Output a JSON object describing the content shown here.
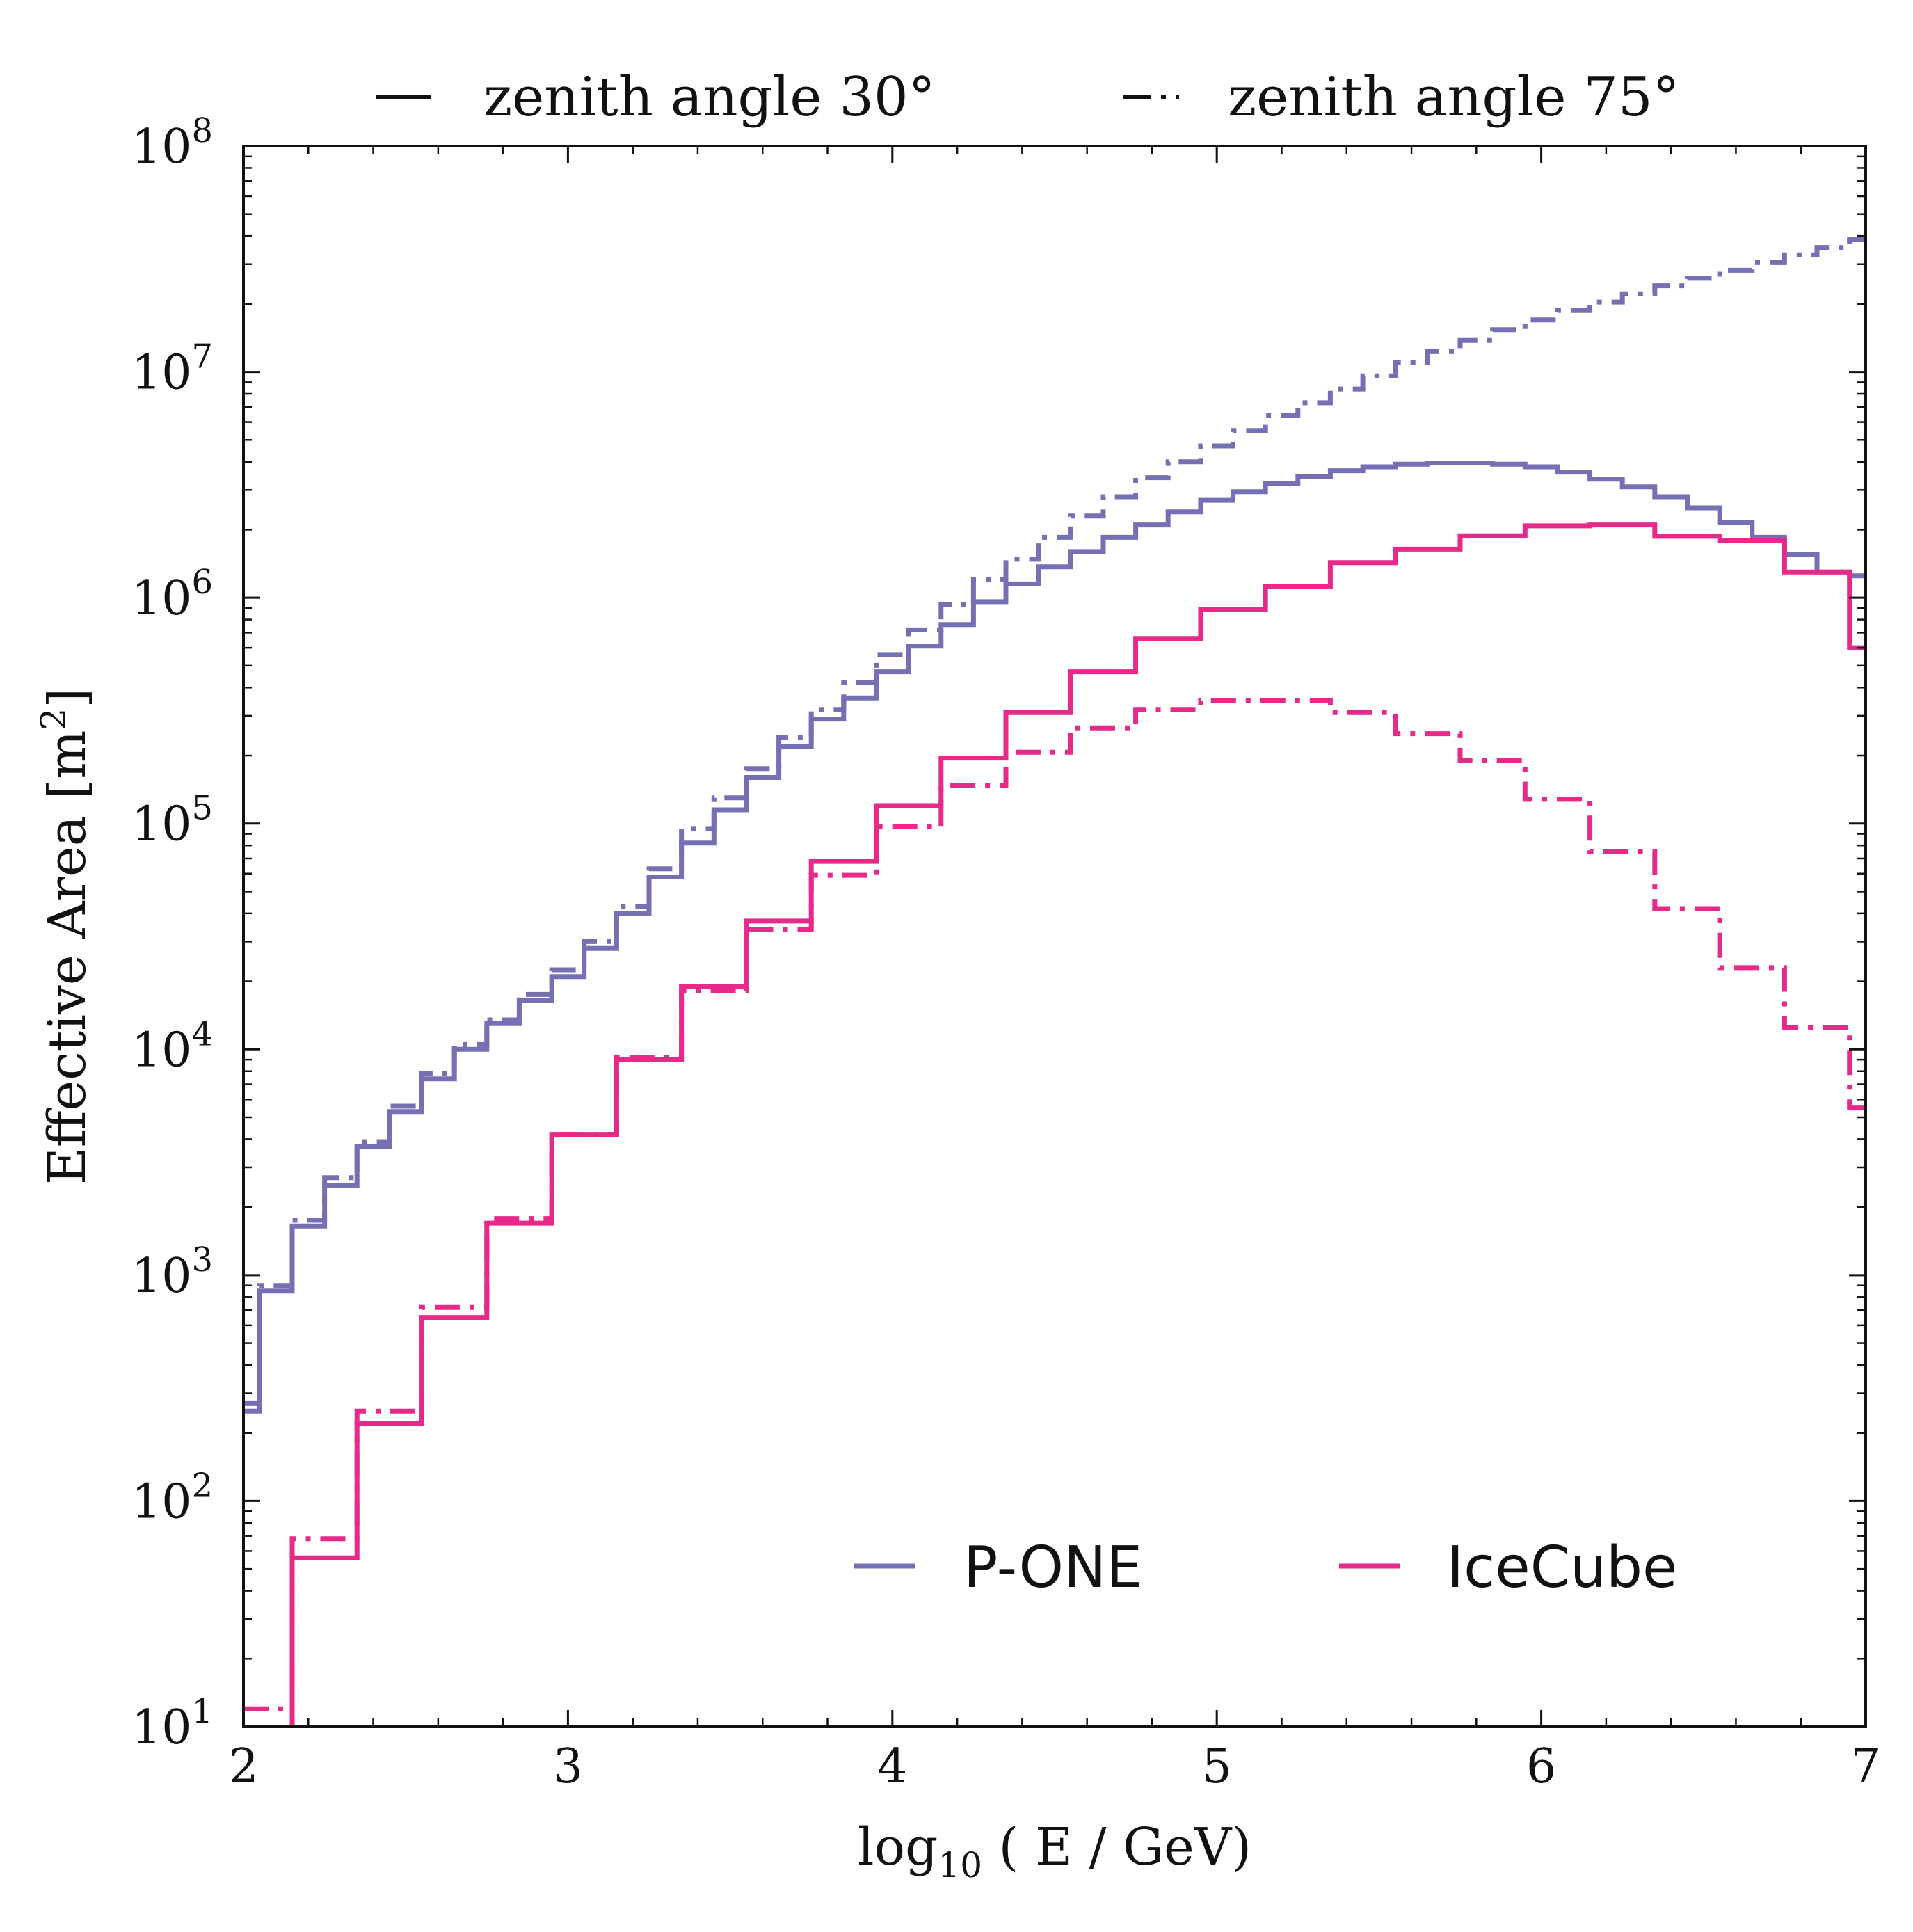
{
  "chart_data": {
    "type": "line",
    "step": true,
    "xlabel_main": "log",
    "xlabel_sub": "10",
    "xlabel_rest": " ( E / GeV)",
    "ylabel_main": "Effective Area [m",
    "ylabel_sup": "2",
    "ylabel_end": "]",
    "xlim": [
      2,
      7
    ],
    "ylim": [
      10,
      100000000
    ],
    "yscale": "log",
    "xticks": [
      2,
      3,
      4,
      5,
      6,
      7
    ],
    "xtick_labels": [
      "2",
      "3",
      "4",
      "5",
      "6",
      "7"
    ],
    "yticks": [
      10,
      100,
      1000,
      10000,
      100000,
      1000000,
      10000000,
      100000000
    ],
    "ytick_base": "10",
    "ytick_exponents": [
      "1",
      "2",
      "3",
      "4",
      "5",
      "6",
      "7",
      "8"
    ],
    "linestyle_legend": {
      "position": "top-outside",
      "entries": [
        {
          "label": "zenith angle 30°",
          "style": "solid"
        },
        {
          "label": "zenith angle 75°",
          "style": "dashdot"
        }
      ]
    },
    "series_legend": {
      "position": "lower-right",
      "entries": [
        {
          "label": "P-ONE",
          "color": "#7570b3"
        },
        {
          "label": "IceCube",
          "color": "#e7298a"
        }
      ]
    },
    "bin_edges": [
      2.0,
      2.05,
      2.15,
      2.25,
      2.35,
      2.45,
      2.55,
      2.65,
      2.75,
      2.85,
      2.95,
      3.05,
      3.15,
      3.25,
      3.35,
      3.45,
      3.55,
      3.65,
      3.75,
      3.85,
      3.95,
      4.05,
      4.15,
      4.25,
      4.35,
      4.45,
      4.55,
      4.65,
      4.75,
      4.85,
      4.95,
      5.05,
      5.15,
      5.25,
      5.35,
      5.45,
      5.55,
      5.65,
      5.75,
      5.85,
      5.95,
      6.05,
      6.15,
      6.25,
      6.35,
      6.45,
      6.55,
      6.65,
      6.75,
      6.85,
      6.95,
      7.0
    ],
    "series": [
      {
        "name": "P-ONE",
        "zenith": "30",
        "style": "solid",
        "color": "#7570b3",
        "edges": [
          2.0,
          2.05,
          2.15,
          2.25,
          2.35,
          2.45,
          2.55,
          2.65,
          2.75,
          2.85,
          2.95,
          3.05,
          3.15,
          3.25,
          3.35,
          3.45,
          3.55,
          3.65,
          3.75,
          3.85,
          3.95,
          4.05,
          4.15,
          4.25,
          4.35,
          4.45,
          4.55,
          4.65,
          4.75,
          4.85,
          4.95,
          5.05,
          5.15,
          5.25,
          5.35,
          5.45,
          5.55,
          5.65,
          5.75,
          5.85,
          5.95,
          6.05,
          6.15,
          6.25,
          6.35,
          6.45,
          6.55,
          6.65,
          6.75,
          6.85,
          6.95,
          7.0
        ],
        "values": [
          250,
          850,
          1650,
          2500,
          3700,
          5300,
          7400,
          10000,
          13000,
          16500,
          21000,
          28000,
          40000,
          58000,
          82000,
          115000,
          160000,
          220000,
          290000,
          360000,
          470000,
          610000,
          760000,
          960000,
          1150000,
          1370000,
          1600000,
          1850000,
          2100000,
          2400000,
          2700000,
          2950000,
          3200000,
          3450000,
          3650000,
          3800000,
          3900000,
          3950000,
          3950000,
          3900000,
          3800000,
          3600000,
          3350000,
          3100000,
          2800000,
          2500000,
          2150000,
          1850000,
          1550000,
          1300000,
          1250000
        ]
      },
      {
        "name": "P-ONE",
        "zenith": "75",
        "style": "dashdot",
        "color": "#7570b3",
        "edges": [
          2.0,
          2.05,
          2.15,
          2.25,
          2.35,
          2.45,
          2.55,
          2.65,
          2.75,
          2.85,
          2.95,
          3.05,
          3.15,
          3.25,
          3.35,
          3.45,
          3.55,
          3.65,
          3.75,
          3.85,
          3.95,
          4.05,
          4.15,
          4.25,
          4.35,
          4.45,
          4.55,
          4.65,
          4.75,
          4.85,
          4.95,
          5.05,
          5.15,
          5.25,
          5.35,
          5.45,
          5.55,
          5.65,
          5.75,
          5.85,
          5.95,
          6.05,
          6.15,
          6.25,
          6.35,
          6.45,
          6.55,
          6.65,
          6.75,
          6.85,
          6.95,
          7.0
        ],
        "values": [
          270,
          900,
          1750,
          2700,
          3900,
          5600,
          7800,
          10500,
          13500,
          17500,
          22500,
          30000,
          43000,
          63000,
          95000,
          130000,
          175000,
          240000,
          320000,
          420000,
          560000,
          720000,
          930000,
          1200000,
          1480000,
          1850000,
          2300000,
          2800000,
          3400000,
          4000000,
          4700000,
          5500000,
          6400000,
          7300000,
          8400000,
          9600000,
          11000000,
          12300000,
          13800000,
          15400000,
          17000000,
          18700000,
          20400000,
          22200000,
          24100000,
          26000000,
          28200000,
          30500000,
          33000000,
          35600000,
          38500000
        ]
      },
      {
        "name": "IceCube",
        "zenith": "30",
        "style": "solid",
        "color": "#e7298a",
        "edges": [
          2.15,
          2.35,
          2.55,
          2.75,
          2.95,
          3.15,
          3.35,
          3.55,
          3.75,
          3.95,
          4.15,
          4.35,
          4.55,
          4.75,
          4.95,
          5.15,
          5.35,
          5.55,
          5.75,
          5.95,
          6.15,
          6.35,
          6.55,
          6.75,
          6.95,
          7.0
        ],
        "values": [
          56,
          220,
          650,
          1700,
          4200,
          9000,
          19000,
          37000,
          68000,
          120000,
          195000,
          310000,
          470000,
          660000,
          890000,
          1120000,
          1430000,
          1640000,
          1880000,
          2080000,
          2100000,
          1870000,
          1790000,
          1300000,
          600000
        ]
      },
      {
        "name": "IceCube",
        "zenith": "75",
        "style": "dashdot",
        "color": "#e7298a",
        "edges": [
          2.0,
          2.15,
          2.35,
          2.55,
          2.75,
          2.95,
          3.15,
          3.35,
          3.55,
          3.75,
          3.95,
          4.15,
          4.35,
          4.55,
          4.75,
          4.95,
          5.15,
          5.35,
          5.55,
          5.75,
          5.95,
          6.15,
          6.35,
          6.55,
          6.75,
          6.95,
          7.0
        ],
        "values": [
          12,
          68,
          250,
          720,
          1780,
          4200,
          9200,
          18200,
          34000,
          59000,
          97000,
          147000,
          207000,
          265000,
          320000,
          350000,
          350000,
          310000,
          250000,
          190000,
          128000,
          75000,
          42000,
          23000,
          12500,
          5500
        ]
      }
    ]
  }
}
